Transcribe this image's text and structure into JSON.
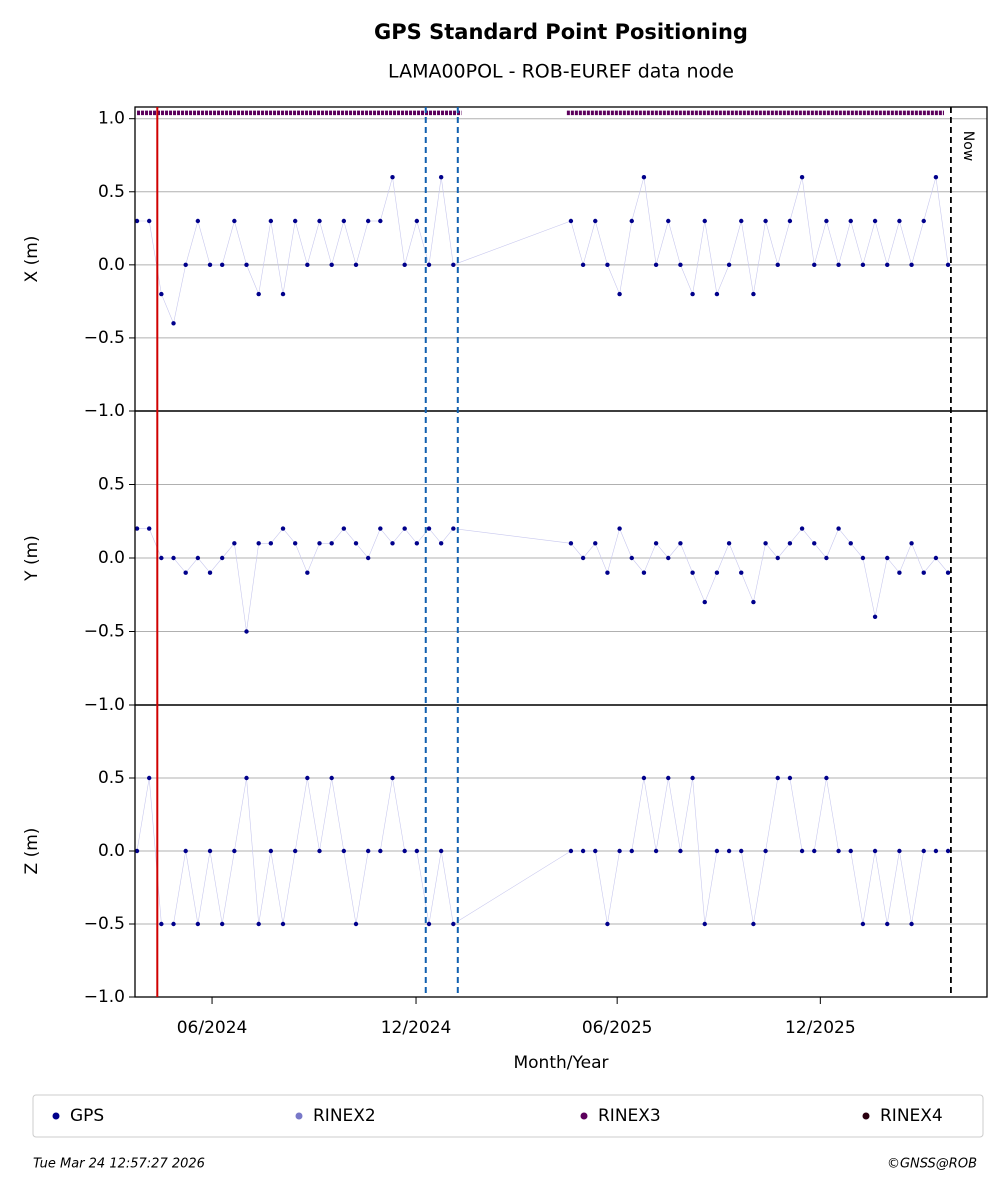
{
  "chart_data": {
    "type": "scatter",
    "title": "GPS Standard Point Positioning",
    "subtitle": "LAMA00POL - ROB-EUREF data node",
    "xlabel": "Month/Year",
    "xlim": [
      2024.225,
      2026.326
    ],
    "xticks": [
      {
        "value": 2024.415,
        "label": "06/2024"
      },
      {
        "value": 2024.918,
        "label": "12/2024"
      },
      {
        "value": 2025.414,
        "label": "06/2025"
      },
      {
        "value": 2025.915,
        "label": "12/2025"
      }
    ],
    "x": [
      2024.23,
      2024.26,
      2024.29,
      2024.32,
      2024.35,
      2024.38,
      2024.41,
      2024.44,
      2024.47,
      2024.5,
      2024.53,
      2024.56,
      2024.59,
      2024.62,
      2024.65,
      2024.68,
      2024.71,
      2024.74,
      2024.77,
      2024.8,
      2024.83,
      2024.86,
      2024.89,
      2024.92,
      2024.95,
      2024.98,
      2025.01,
      2025.3,
      2025.33,
      2025.36,
      2025.39,
      2025.42,
      2025.45,
      2025.48,
      2025.51,
      2025.54,
      2025.57,
      2025.6,
      2025.63,
      2025.66,
      2025.69,
      2025.72,
      2025.75,
      2025.78,
      2025.81,
      2025.84,
      2025.87,
      2025.9,
      2025.93,
      2025.96,
      2025.99,
      2026.02,
      2026.05,
      2026.08,
      2026.11,
      2026.14,
      2026.17,
      2026.2,
      2026.23
    ],
    "panels": [
      {
        "ylabel": "X (m)",
        "ylim": [
          -1,
          1.08
        ],
        "yticks": [
          {
            "value": -1,
            "label": "−1.0"
          },
          {
            "value": -0.5,
            "label": "−0.5"
          },
          {
            "value": 0,
            "label": "0.0"
          },
          0.5,
          {
            "value": 1,
            "label": "1.0"
          }
        ],
        "values": [
          0.3,
          0.3,
          -0.2,
          -0.4,
          0,
          0.3,
          0,
          0,
          0.3,
          0,
          -0.2,
          0.3,
          -0.2,
          0.3,
          0,
          0.3,
          0,
          0.3,
          0,
          0.3,
          0.3,
          0.6,
          0,
          0.3,
          0,
          0.6,
          0,
          0.3,
          0,
          0.3,
          0,
          -0.2,
          0.3,
          0.6,
          0,
          0.3,
          0,
          -0.2,
          0.3,
          -0.2,
          0,
          0.3,
          -0.2,
          0.3,
          0,
          0.3,
          0.6,
          0,
          0.3,
          0,
          0.3,
          0,
          0.3,
          0,
          0.3,
          0,
          0.3,
          0.6,
          0
        ]
      },
      {
        "ylabel": "Y (m)",
        "ylim": [
          -1,
          1
        ],
        "yticks": [
          {
            "value": -1,
            "label": "−1.0"
          },
          {
            "value": -0.5,
            "label": "−0.5"
          },
          {
            "value": 0,
            "label": "0.0"
          },
          0.5
        ],
        "values": [
          0.2,
          0.2,
          0,
          0,
          -0.1,
          0,
          -0.1,
          0,
          0.1,
          -0.5,
          0.1,
          0.1,
          0.2,
          0.1,
          -0.1,
          0.1,
          0.1,
          0.2,
          0.1,
          0,
          0.2,
          0.1,
          0.2,
          0.1,
          0.2,
          0.1,
          0.2,
          0.1,
          0,
          0.1,
          -0.1,
          0.2,
          0,
          -0.1,
          0.1,
          0,
          0.1,
          -0.1,
          -0.3,
          -0.1,
          0.1,
          -0.1,
          -0.3,
          0.1,
          0,
          0.1,
          0.2,
          0.1,
          0,
          0.2,
          0.1,
          0,
          -0.4,
          0,
          -0.1,
          0.1,
          -0.1,
          0,
          -0.1
        ]
      },
      {
        "ylabel": "Z (m)",
        "ylim": [
          -1,
          1
        ],
        "yticks": [
          {
            "value": -1,
            "label": "−1.0"
          },
          {
            "value": -0.5,
            "label": "−0.5"
          },
          {
            "value": 0,
            "label": "0.0"
          },
          0.5
        ],
        "values": [
          0,
          0.5,
          -0.5,
          -0.5,
          0,
          -0.5,
          0,
          -0.5,
          0,
          0.5,
          -0.5,
          0,
          -0.5,
          0,
          0.5,
          0,
          0.5,
          0,
          -0.5,
          0,
          0,
          0.5,
          0,
          0,
          -0.5,
          0,
          -0.5,
          0,
          0,
          0,
          -0.5,
          0,
          0,
          0.5,
          0,
          0.5,
          0,
          0.5,
          -0.5,
          0,
          0,
          0,
          -0.5,
          0,
          0.5,
          0.5,
          0,
          0,
          0.5,
          0,
          0,
          -0.5,
          0,
          -0.5,
          0,
          -0.5,
          0,
          0,
          0
        ]
      }
    ],
    "series": [
      {
        "name": "GPS",
        "color": "#00008b"
      },
      {
        "name": "RINEX2",
        "color": "#7878c8"
      },
      {
        "name": "RINEX3",
        "color": "#5c005c",
        "level": 1.04,
        "spans": [
          [
            2024.23,
            2025.03
          ],
          [
            2025.29,
            2026.22
          ]
        ]
      },
      {
        "name": "RINEX4",
        "color": "#2a0010"
      }
    ],
    "markers": [
      {
        "x": 2024.28,
        "color": "#d00000"
      },
      {
        "x": 2024.942,
        "color": "#1060b0"
      },
      {
        "x": 2025.021,
        "color": "#1060b0"
      }
    ],
    "now": {
      "x": 2026.237,
      "label": "Now"
    },
    "timestamp": "Tue Mar 24 12:57:27 2026",
    "credit": "©GNSS@ROB"
  }
}
